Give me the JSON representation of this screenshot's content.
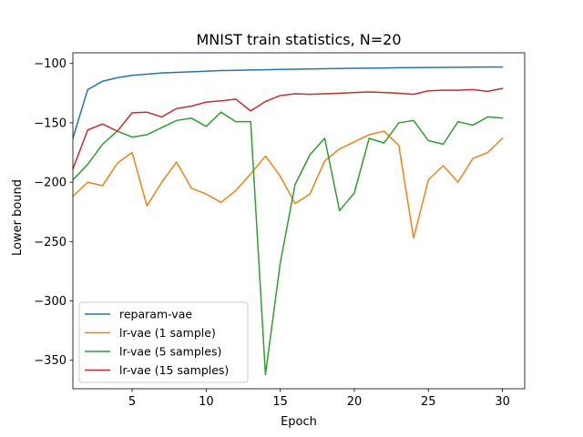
{
  "chart_data": {
    "type": "line",
    "title": "MNIST train statistics, N=20",
    "xlabel": "Epoch",
    "ylabel": "Lower bound",
    "xlim": [
      1,
      31.5
    ],
    "ylim": [
      -374,
      -91
    ],
    "xticks": [
      5,
      10,
      15,
      20,
      25,
      30
    ],
    "yticks": [
      -100,
      -150,
      -200,
      -250,
      -300,
      -350
    ],
    "grid": false,
    "legend_position": "lower left",
    "x": [
      1,
      2,
      3,
      4,
      5,
      6,
      7,
      8,
      9,
      10,
      11,
      12,
      13,
      14,
      15,
      16,
      17,
      18,
      19,
      20,
      21,
      22,
      23,
      24,
      25,
      26,
      27,
      28,
      29,
      30
    ],
    "series": [
      {
        "name": "reparam-vae",
        "color": "#1f77b4",
        "values": [
          -163,
          -122,
          -115,
          -112,
          -110,
          -109,
          -108,
          -107.5,
          -107,
          -106.5,
          -106,
          -105.8,
          -105.5,
          -105.3,
          -105,
          -104.8,
          -104.6,
          -104.4,
          -104.2,
          -104,
          -103.9,
          -103.8,
          -103.6,
          -103.5,
          -103.4,
          -103.3,
          -103.2,
          -103.1,
          -103,
          -103
        ]
      },
      {
        "name": "lr-vae (1 sample)",
        "color": "#ff7f0e",
        "values": [
          -212,
          -200,
          -203,
          -184,
          -175,
          -220,
          -200,
          -183,
          -205,
          -210,
          -217,
          -207,
          -193,
          -178,
          -195,
          -218,
          -210,
          -182,
          -172,
          -166,
          -160,
          -157,
          -169,
          -247,
          -198,
          -186,
          -200,
          -180,
          -175,
          -163
        ]
      },
      {
        "name": "lr-vae (5 samples)",
        "color": "#2ca02c",
        "values": [
          -198,
          -185,
          -168,
          -157,
          -162,
          -160,
          -154,
          -148,
          -146,
          -153,
          -141,
          -149,
          -149,
          -362,
          -268,
          -202,
          -177,
          -163,
          -224,
          -209,
          -163,
          -167,
          -150,
          -148,
          -165,
          -168,
          -149,
          -152,
          -145,
          -146
        ]
      },
      {
        "name": "lr-vae (15 samples)",
        "color": "#d62728",
        "values": [
          -189,
          -156,
          -151,
          -157,
          -141.5,
          -141,
          -145,
          -138,
          -136,
          -132.5,
          -131.5,
          -130,
          -140,
          -132,
          -127,
          -125.5,
          -126,
          -125.5,
          -125,
          -124.5,
          -124,
          -124.5,
          -125,
          -126,
          -123,
          -122.5,
          -122.5,
          -122,
          -123.5,
          -121
        ]
      }
    ]
  }
}
